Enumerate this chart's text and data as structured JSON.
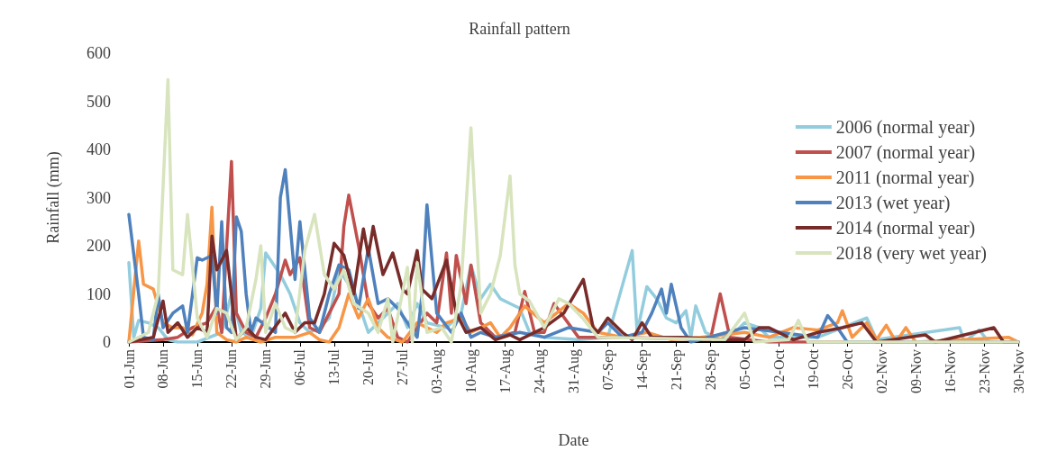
{
  "chart_data": {
    "type": "line",
    "title": "Rainfall pattern",
    "xlabel": "Date",
    "ylabel": "Rainfall (mm)",
    "ylim": [
      0,
      600
    ],
    "yticks": [
      0,
      100,
      200,
      300,
      400,
      500,
      600
    ],
    "xlim": [
      "--06-01",
      "--11-30"
    ],
    "xticks": [
      {
        "value": "--06-01",
        "label": "01-Jun"
      },
      {
        "value": "--06-08",
        "label": "08-Jun"
      },
      {
        "value": "--06-15",
        "label": "15-Jun"
      },
      {
        "value": "--06-22",
        "label": "22-Jun"
      },
      {
        "value": "--06-29",
        "label": "29-Jun"
      },
      {
        "value": "--07-06",
        "label": "06-Jul"
      },
      {
        "value": "--07-13",
        "label": "13-Jul"
      },
      {
        "value": "--07-20",
        "label": "20-Jul"
      },
      {
        "value": "--07-27",
        "label": "27-Jul"
      },
      {
        "value": "--08-03",
        "label": "03-Aug"
      },
      {
        "value": "--08-10",
        "label": "10-Aug"
      },
      {
        "value": "--08-17",
        "label": "17-Aug"
      },
      {
        "value": "--08-24",
        "label": "24-Aug"
      },
      {
        "value": "--08-31",
        "label": "31-Aug"
      },
      {
        "value": "--09-07",
        "label": "07-Sep"
      },
      {
        "value": "--09-14",
        "label": "14-Sep"
      },
      {
        "value": "--09-21",
        "label": "21-Sep"
      },
      {
        "value": "--09-28",
        "label": "28-Sep"
      },
      {
        "value": "--10-05",
        "label": "05-Oct"
      },
      {
        "value": "--10-12",
        "label": "12-Oct"
      },
      {
        "value": "--10-19",
        "label": "19-Oct"
      },
      {
        "value": "--10-26",
        "label": "26-Oct"
      },
      {
        "value": "--11-02",
        "label": "02-Nov"
      },
      {
        "value": "--11-09",
        "label": "09-Nov"
      },
      {
        "value": "--11-16",
        "label": "16-Nov"
      },
      {
        "value": "--11-23",
        "label": "23-Nov"
      },
      {
        "value": "--11-30",
        "label": "30-Nov"
      }
    ],
    "grid": false,
    "legend": "right",
    "marker": "none",
    "line_style": "solid",
    "series": [
      {
        "name": "2006 (normal year)",
        "color": "#93cddd",
        "x": [
          "--06-01",
          "--06-02",
          "--06-03",
          "--06-05",
          "--06-07",
          "--06-09",
          "--06-11",
          "--06-15",
          "--06-20",
          "--06-22",
          "--06-24",
          "--06-26",
          "--06-28",
          "--06-29",
          "--07-02",
          "--07-04",
          "--07-06",
          "--07-08",
          "--07-10",
          "--07-12",
          "--07-14",
          "--07-16",
          "--07-18",
          "--07-20",
          "--07-22",
          "--07-24",
          "--07-26",
          "--07-28",
          "--07-30",
          "--08-01",
          "--08-05",
          "--08-08",
          "--08-10",
          "--08-12",
          "--08-14",
          "--08-16",
          "--08-18",
          "--08-20",
          "--08-22",
          "--08-25",
          "--09-01",
          "--09-07",
          "--09-12",
          "--09-13",
          "--09-15",
          "--09-17",
          "--09-19",
          "--09-21",
          "--09-23",
          "--09-24",
          "--09-25",
          "--09-27",
          "--09-30",
          "--10-03",
          "--10-05",
          "--10-08",
          "--10-10",
          "--10-20",
          "--10-30",
          "--11-01",
          "--11-18",
          "--11-19",
          "--11-22",
          "--11-24",
          "--11-30"
        ],
        "values": [
          165,
          10,
          45,
          40,
          30,
          5,
          0,
          0,
          20,
          100,
          20,
          10,
          70,
          185,
          140,
          100,
          40,
          20,
          30,
          50,
          150,
          120,
          80,
          20,
          40,
          60,
          80,
          30,
          80,
          40,
          30,
          60,
          160,
          90,
          120,
          90,
          80,
          70,
          20,
          10,
          5,
          10,
          190,
          20,
          115,
          90,
          50,
          40,
          65,
          10,
          75,
          20,
          5,
          20,
          40,
          30,
          10,
          10,
          50,
          5,
          30,
          0,
          25,
          0,
          0
        ]
      },
      {
        "name": "2007 (normal year)",
        "color": "#c0504d",
        "x": [
          "--06-01",
          "--06-08",
          "--06-11",
          "--06-14",
          "--06-17",
          "--06-19",
          "--06-20",
          "--06-22",
          "--06-23",
          "--06-25",
          "--06-27",
          "--06-29",
          "--07-01",
          "--07-03",
          "--07-04",
          "--07-06",
          "--07-08",
          "--07-10",
          "--07-12",
          "--07-14",
          "--07-15",
          "--07-16",
          "--07-18",
          "--07-20",
          "--07-22",
          "--07-24",
          "--07-26",
          "--07-28",
          "--07-30",
          "--08-01",
          "--08-03",
          "--08-05",
          "--08-06",
          "--08-07",
          "--08-09",
          "--08-10",
          "--08-12",
          "--08-15",
          "--08-19",
          "--08-21",
          "--08-23",
          "--08-25",
          "--08-27",
          "--09-01",
          "--09-10",
          "--09-28",
          "--09-30",
          "--10-02",
          "--10-10",
          "--11-30"
        ],
        "values": [
          0,
          5,
          10,
          30,
          40,
          75,
          20,
          375,
          60,
          20,
          10,
          50,
          100,
          170,
          140,
          175,
          30,
          20,
          60,
          100,
          240,
          305,
          200,
          80,
          50,
          70,
          10,
          0,
          30,
          60,
          40,
          185,
          60,
          180,
          80,
          160,
          40,
          10,
          20,
          105,
          20,
          20,
          80,
          10,
          10,
          5,
          100,
          10,
          0,
          0
        ]
      },
      {
        "name": "2011 (normal year)",
        "color": "#f79646",
        "x": [
          "--06-01",
          "--06-03",
          "--06-04",
          "--06-06",
          "--06-08",
          "--06-10",
          "--06-12",
          "--06-14",
          "--06-16",
          "--06-17",
          "--06-18",
          "--06-19",
          "--06-21",
          "--06-23",
          "--06-25",
          "--06-28",
          "--07-01",
          "--07-05",
          "--07-08",
          "--07-10",
          "--07-12",
          "--07-14",
          "--07-16",
          "--07-18",
          "--07-20",
          "--07-22",
          "--07-24",
          "--07-27",
          "--07-30",
          "--08-03",
          "--08-05",
          "--08-08",
          "--08-10",
          "--08-14",
          "--08-16",
          "--08-18",
          "--08-21",
          "--08-25",
          "--08-30",
          "--09-02",
          "--09-05",
          "--09-10",
          "--09-15",
          "--09-20",
          "--09-26",
          "--10-05",
          "--10-10",
          "--10-15",
          "--10-20",
          "--10-24",
          "--10-25",
          "--10-27",
          "--10-30",
          "--11-01",
          "--11-03",
          "--11-05",
          "--11-07",
          "--11-09",
          "--11-28",
          "--11-30"
        ],
        "values": [
          0,
          210,
          120,
          110,
          40,
          30,
          30,
          15,
          60,
          120,
          280,
          20,
          5,
          0,
          10,
          0,
          10,
          10,
          20,
          5,
          0,
          30,
          100,
          50,
          90,
          30,
          10,
          0,
          40,
          20,
          40,
          50,
          20,
          40,
          10,
          30,
          75,
          40,
          80,
          60,
          20,
          10,
          20,
          5,
          10,
          20,
          10,
          30,
          25,
          40,
          65,
          10,
          40,
          5,
          35,
          0,
          30,
          0,
          10,
          0
        ]
      },
      {
        "name": "2013 (wet year)",
        "color": "#4f81bd",
        "x": [
          "--06-01",
          "--06-03",
          "--06-04",
          "--06-06",
          "--06-07",
          "--06-08",
          "--06-10",
          "--06-12",
          "--06-13",
          "--06-15",
          "--06-16",
          "--06-18",
          "--06-19",
          "--06-20",
          "--06-21",
          "--06-22",
          "--06-23",
          "--06-24",
          "--06-25",
          "--06-26",
          "--06-27",
          "--07-01",
          "--07-02",
          "--07-03",
          "--07-05",
          "--07-06",
          "--07-08",
          "--07-10",
          "--07-12",
          "--07-14",
          "--07-16",
          "--07-18",
          "--07-20",
          "--07-22",
          "--07-24",
          "--07-26",
          "--07-28",
          "--07-30",
          "--07-31",
          "--08-01",
          "--08-03",
          "--08-06",
          "--08-08",
          "--08-10",
          "--08-12",
          "--08-15",
          "--08-20",
          "--08-25",
          "--08-30",
          "--09-05",
          "--09-07",
          "--09-10",
          "--09-14",
          "--09-16",
          "--09-18",
          "--09-19",
          "--09-20",
          "--09-22",
          "--09-24",
          "--10-05",
          "--10-20",
          "--10-22",
          "--10-24",
          "--10-26",
          "--11-30"
        ],
        "values": [
          265,
          100,
          10,
          5,
          100,
          30,
          60,
          75,
          20,
          175,
          170,
          180,
          60,
          250,
          30,
          20,
          260,
          230,
          100,
          20,
          50,
          20,
          300,
          358,
          130,
          250,
          50,
          20,
          100,
          160,
          150,
          70,
          195,
          80,
          90,
          70,
          40,
          10,
          100,
          285,
          60,
          20,
          60,
          10,
          20,
          10,
          20,
          10,
          30,
          20,
          40,
          10,
          20,
          60,
          110,
          60,
          120,
          30,
          0,
          30,
          10,
          55,
          30,
          0,
          0
        ]
      },
      {
        "name": "2014 (normal year)",
        "color": "#772c2a",
        "x": [
          "--06-01",
          "--06-06",
          "--06-08",
          "--06-09",
          "--06-11",
          "--06-13",
          "--06-15",
          "--06-17",
          "--06-18",
          "--06-19",
          "--06-21",
          "--06-23",
          "--06-25",
          "--06-27",
          "--06-29",
          "--07-03",
          "--07-05",
          "--07-07",
          "--07-09",
          "--07-11",
          "--07-13",
          "--07-15",
          "--07-17",
          "--07-19",
          "--07-20",
          "--07-21",
          "--07-23",
          "--07-25",
          "--07-27",
          "--07-28",
          "--07-30",
          "--07-31",
          "--08-02",
          "--08-05",
          "--08-07",
          "--08-09",
          "--08-12",
          "--08-15",
          "--08-18",
          "--08-20",
          "--08-25",
          "--08-29",
          "--09-02",
          "--09-04",
          "--09-05",
          "--09-07",
          "--09-10",
          "--09-12",
          "--09-14",
          "--09-16",
          "--09-22",
          "--10-01",
          "--10-05",
          "--10-08",
          "--10-10",
          "--10-15",
          "--10-20",
          "--10-25",
          "--10-29",
          "--11-01",
          "--11-11",
          "--11-13",
          "--11-25",
          "--11-27",
          "--11-30"
        ],
        "values": [
          0,
          10,
          85,
          20,
          40,
          10,
          30,
          20,
          220,
          150,
          190,
          5,
          30,
          10,
          5,
          60,
          20,
          40,
          40,
          100,
          205,
          180,
          100,
          235,
          180,
          240,
          140,
          185,
          110,
          100,
          190,
          110,
          90,
          170,
          60,
          20,
          30,
          5,
          15,
          5,
          30,
          60,
          130,
          30,
          20,
          50,
          20,
          5,
          40,
          10,
          10,
          5,
          5,
          30,
          30,
          5,
          20,
          30,
          40,
          0,
          15,
          0,
          30,
          0,
          0
        ]
      },
      {
        "name": "2018 (very wet year)",
        "color": "#d7e4bd",
        "x": [
          "--06-01",
          "--06-05",
          "--06-07",
          "--06-09",
          "--06-10",
          "--06-12",
          "--06-13",
          "--06-15",
          "--06-17",
          "--06-19",
          "--06-21",
          "--06-23",
          "--06-25",
          "--06-27",
          "--06-28",
          "--06-29",
          "--07-01",
          "--07-03",
          "--07-05",
          "--07-07",
          "--07-09",
          "--07-11",
          "--07-13",
          "--07-15",
          "--07-17",
          "--07-20",
          "--07-22",
          "--07-24",
          "--07-25",
          "--07-28",
          "--07-29",
          "--07-30",
          "--08-01",
          "--08-04",
          "--08-06",
          "--08-08",
          "--08-10",
          "--08-12",
          "--08-14",
          "--08-16",
          "--08-18",
          "--08-19",
          "--08-20",
          "--08-22",
          "--08-25",
          "--08-28",
          "--08-30",
          "--09-02",
          "--09-05",
          "--10-01",
          "--10-05",
          "--10-07",
          "--10-14",
          "--10-16",
          "--10-18",
          "--11-30"
        ],
        "values": [
          0,
          20,
          100,
          545,
          150,
          140,
          265,
          50,
          10,
          70,
          60,
          5,
          30,
          130,
          200,
          20,
          80,
          30,
          20,
          190,
          265,
          140,
          110,
          150,
          80,
          60,
          20,
          90,
          0,
          155,
          0,
          165,
          20,
          30,
          0,
          120,
          445,
          60,
          100,
          180,
          345,
          160,
          100,
          85,
          30,
          90,
          80,
          48,
          10,
          5,
          60,
          0,
          5,
          45,
          0,
          0
        ]
      }
    ]
  }
}
